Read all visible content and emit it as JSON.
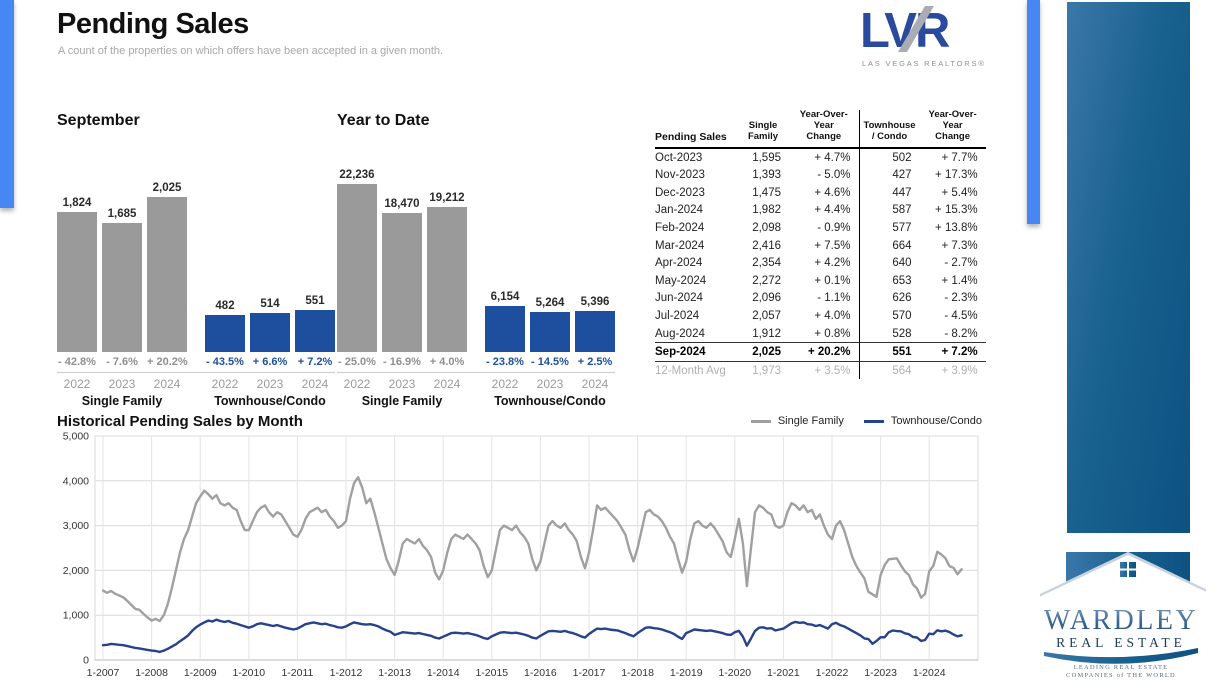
{
  "page": {
    "title": "Pending Sales",
    "subtitle": "A count of the properties on which offers have been accepted in a given month."
  },
  "logo_lvr": {
    "text": "LVR",
    "tagline": "LAS VEGAS REALTORS®"
  },
  "wardley_logo": {
    "name": "WARDLEY",
    "subname": "REAL ESTATE",
    "tagline1": "LEADING REAL ESTATE",
    "tagline2": "COMPANIES of THE WORLD"
  },
  "colors": {
    "bar_gray": "#9a9a9a",
    "bar_blue": "#1e4f9e",
    "line_gray": "#a0a0a0",
    "line_blue": "#26428b",
    "accent_strip": "#4787f3"
  },
  "table": {
    "header": {
      "first": "Pending Sales",
      "cols": [
        [
          "Single",
          "Family"
        ],
        [
          "Year-Over-Year",
          "Change"
        ],
        [
          "Townhouse",
          "/ Condo"
        ],
        [
          "Year-Over-Year",
          "Change"
        ]
      ]
    },
    "rows": [
      [
        "Oct-2023",
        "1,595",
        "+ 4.7%",
        "502",
        "+ 7.7%"
      ],
      [
        "Nov-2023",
        "1,393",
        "- 5.0%",
        "427",
        "+ 17.3%"
      ],
      [
        "Dec-2023",
        "1,475",
        "+ 4.6%",
        "447",
        "+ 5.4%"
      ],
      [
        "Jan-2024",
        "1,982",
        "+ 4.4%",
        "587",
        "+ 15.3%"
      ],
      [
        "Feb-2024",
        "2,098",
        "- 0.9%",
        "577",
        "+ 13.8%"
      ],
      [
        "Mar-2024",
        "2,416",
        "+ 7.5%",
        "664",
        "+ 7.3%"
      ],
      [
        "Apr-2024",
        "2,354",
        "+ 4.2%",
        "640",
        "- 2.7%"
      ],
      [
        "May-2024",
        "2,272",
        "+ 0.1%",
        "653",
        "+ 1.4%"
      ],
      [
        "Jun-2024",
        "2,096",
        "- 1.1%",
        "626",
        "- 2.3%"
      ],
      [
        "Jul-2024",
        "2,057",
        "+ 4.0%",
        "570",
        "- 4.5%"
      ],
      [
        "Aug-2024",
        "1,912",
        "+ 0.8%",
        "528",
        "- 8.2%"
      ],
      [
        "Sep-2024",
        "2,025",
        "+ 20.2%",
        "551",
        "+ 7.2%"
      ],
      [
        "12-Month Avg",
        "1,973",
        "+ 3.5%",
        "564",
        "+ 3.9%"
      ]
    ],
    "highlight_row_index": 11,
    "footer_row_index": 12
  },
  "chart_data": [
    {
      "type": "bar",
      "title": "September",
      "categories": [
        "2022",
        "2023",
        "2024"
      ],
      "series": [
        {
          "name": "Single Family",
          "values": [
            1824,
            1685,
            2025
          ],
          "labels": [
            "1,824",
            "1,685",
            "2,025"
          ],
          "pct_changes": [
            "- 42.8%",
            "- 7.6%",
            "+ 20.2%"
          ]
        },
        {
          "name": "Townhouse/Condo",
          "values": [
            482,
            514,
            551
          ],
          "labels": [
            "482",
            "514",
            "551"
          ],
          "pct_changes": [
            "- 43.5%",
            "+ 6.6%",
            "+ 7.2%"
          ]
        }
      ]
    },
    {
      "type": "bar",
      "title": "Year to Date",
      "categories": [
        "2022",
        "2023",
        "2024"
      ],
      "series": [
        {
          "name": "Single Family",
          "values": [
            22236,
            18470,
            19212
          ],
          "labels": [
            "22,236",
            "18,470",
            "19,212"
          ],
          "pct_changes": [
            "- 25.0%",
            "- 16.9%",
            "+ 4.0%"
          ]
        },
        {
          "name": "Townhouse/Condo",
          "values": [
            6154,
            5264,
            5396
          ],
          "labels": [
            "6,154",
            "5,264",
            "5,396"
          ],
          "pct_changes": [
            "- 23.8%",
            "- 14.5%",
            "+ 2.5%"
          ]
        }
      ]
    },
    {
      "type": "line",
      "title": "Historical Pending Sales by Month",
      "x_range": [
        "2007-01",
        "2024-09"
      ],
      "ylim": [
        0,
        5000
      ],
      "grid": true,
      "legend_position": "top-right",
      "y_tick_labels": [
        "0",
        "1,000",
        "2,000",
        "3,000",
        "4,000",
        "5,000"
      ],
      "x_tick_labels": [
        "1-2007",
        "1-2008",
        "1-2009",
        "1-2010",
        "1-2011",
        "1-2012",
        "1-2013",
        "1-2014",
        "1-2015",
        "1-2016",
        "1-2017",
        "1-2018",
        "1-2019",
        "1-2020",
        "1-2021",
        "1-2022",
        "1-2023",
        "1-2024"
      ],
      "series": [
        {
          "name": "Single Family",
          "color": "#a0a0a0",
          "values": [
            1550,
            1500,
            1540,
            1480,
            1440,
            1400,
            1320,
            1230,
            1140,
            1120,
            1030,
            950,
            880,
            920,
            870,
            1000,
            1250,
            1600,
            2000,
            2400,
            2700,
            2900,
            3200,
            3500,
            3650,
            3780,
            3700,
            3600,
            3680,
            3500,
            3450,
            3500,
            3400,
            3350,
            3100,
            2900,
            2900,
            3100,
            3300,
            3400,
            3450,
            3300,
            3200,
            3300,
            3250,
            3100,
            2950,
            2800,
            2750,
            2900,
            3150,
            3300,
            3350,
            3400,
            3300,
            3350,
            3200,
            3100,
            2950,
            3000,
            3100,
            3600,
            3950,
            4080,
            3850,
            3500,
            3600,
            3300,
            2950,
            2600,
            2250,
            2050,
            1900,
            2200,
            2600,
            2700,
            2650,
            2600,
            2700,
            2550,
            2450,
            2300,
            1950,
            1800,
            2000,
            2400,
            2700,
            2800,
            2750,
            2700,
            2800,
            2700,
            2600,
            2450,
            2100,
            1850,
            2000,
            2450,
            2900,
            3000,
            2950,
            2900,
            3000,
            2850,
            2750,
            2600,
            2250,
            2000,
            2200,
            2600,
            3000,
            3100,
            3000,
            2950,
            3050,
            2900,
            2800,
            2650,
            2300,
            2050,
            2400,
            2900,
            3450,
            3350,
            3400,
            3300,
            3200,
            3100,
            2950,
            2800,
            2450,
            2200,
            2500,
            2900,
            3300,
            3350,
            3250,
            3200,
            3100,
            2950,
            2750,
            2600,
            2250,
            1950,
            2200,
            2700,
            3050,
            3100,
            3000,
            2950,
            3050,
            2950,
            2800,
            2650,
            2400,
            2300,
            2700,
            3150,
            2600,
            1650,
            2500,
            3300,
            3450,
            3400,
            3300,
            3250,
            3000,
            2950,
            3000,
            3300,
            3500,
            3450,
            3350,
            3450,
            3300,
            3350,
            3150,
            3250,
            3000,
            2800,
            2700,
            3000,
            3100,
            2900,
            2600,
            2300,
            2100,
            1950,
            1824,
            1523,
            1466,
            1410,
            1898,
            2117,
            2247,
            2259,
            2270,
            2119,
            1978,
            1897,
            1685,
            1595,
            1393,
            1475,
            1982,
            2098,
            2416,
            2354,
            2272,
            2096,
            2057,
            1912,
            2025
          ]
        },
        {
          "name": "Townhouse/Condo",
          "color": "#26428b",
          "values": [
            330,
            340,
            360,
            350,
            340,
            330,
            310,
            290,
            270,
            260,
            240,
            225,
            210,
            200,
            180,
            210,
            250,
            300,
            350,
            420,
            480,
            550,
            650,
            730,
            790,
            840,
            880,
            860,
            900,
            870,
            850,
            870,
            830,
            810,
            780,
            750,
            720,
            750,
            800,
            820,
            800,
            780,
            760,
            780,
            750,
            720,
            700,
            680,
            700,
            750,
            800,
            820,
            840,
            820,
            800,
            810,
            780,
            760,
            730,
            720,
            750,
            800,
            840,
            820,
            800,
            790,
            800,
            780,
            750,
            700,
            660,
            630,
            560,
            590,
            620,
            610,
            600,
            590,
            600,
            580,
            560,
            540,
            500,
            480,
            520,
            560,
            600,
            610,
            600,
            590,
            600,
            580,
            560,
            530,
            490,
            470,
            530,
            570,
            610,
            620,
            610,
            600,
            610,
            590,
            570,
            540,
            500,
            480,
            540,
            590,
            640,
            650,
            640,
            630,
            650,
            620,
            600,
            570,
            530,
            500,
            580,
            640,
            700,
            690,
            700,
            680,
            670,
            660,
            630,
            600,
            560,
            530,
            600,
            660,
            720,
            730,
            710,
            700,
            680,
            650,
            620,
            580,
            520,
            470,
            600,
            640,
            680,
            670,
            660,
            650,
            660,
            640,
            620,
            600,
            570,
            560,
            620,
            650,
            520,
            320,
            480,
            650,
            720,
            730,
            700,
            710,
            660,
            680,
            700,
            760,
            820,
            850,
            830,
            840,
            800,
            790,
            760,
            780,
            740,
            700,
            800,
            830,
            780,
            750,
            700,
            650,
            600,
            550,
            482,
            466,
            364,
            424,
            509,
            507,
            619,
            658,
            644,
            641,
            597,
            575,
            514,
            502,
            427,
            447,
            587,
            577,
            664,
            640,
            653,
            626,
            570,
            528,
            551
          ]
        }
      ]
    }
  ]
}
